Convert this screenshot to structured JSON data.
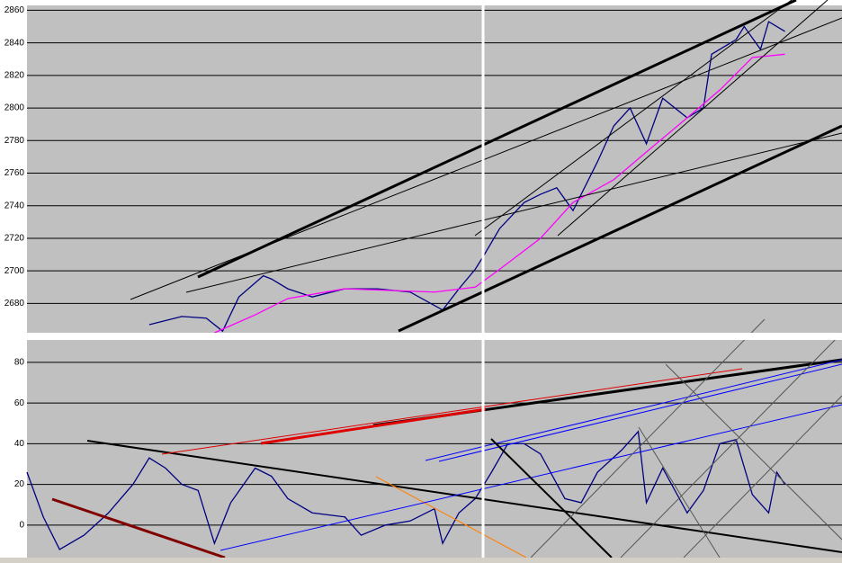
{
  "chart_data": [
    {
      "type": "line",
      "ylim": [
        2662,
        2863
      ],
      "yticks": [
        2680,
        2700,
        2720,
        2740,
        2760,
        2780,
        2800,
        2820,
        2840,
        2860
      ],
      "xlim": [
        0,
        100
      ],
      "grid": true,
      "series": [
        {
          "color": "#000080",
          "x": [
            15,
            19,
            22,
            24,
            26,
            29,
            30,
            32,
            35,
            39,
            43,
            47,
            51,
            53,
            55,
            56,
            58,
            61,
            63,
            65,
            67,
            70,
            72,
            74,
            76,
            78,
            81,
            83,
            84,
            87,
            88,
            90,
            91,
            93
          ],
          "values": [
            2667,
            2672,
            2671,
            2663,
            2684,
            2697,
            2695,
            2689,
            2684,
            2689,
            2689,
            2687,
            2676,
            2689,
            2701,
            2709,
            2726,
            2742,
            2747,
            2751,
            2737,
            2767,
            2789,
            2800,
            2778,
            2806,
            2794,
            2800,
            2833,
            2842,
            2850,
            2836,
            2853,
            2847
          ]
        },
        {
          "color": "#ff00ff",
          "x": [
            23,
            28,
            32,
            39,
            50,
            55,
            58,
            63,
            67,
            72,
            76,
            81,
            85,
            89,
            93
          ],
          "values": [
            2662,
            2673,
            2683,
            2689,
            2687,
            2690,
            2701,
            2720,
            2742,
            2756,
            2773,
            2794,
            2811,
            2831,
            2833
          ]
        }
      ]
    },
    {
      "type": "line",
      "ylim": [
        -16,
        91
      ],
      "yticks": [
        0,
        20,
        40,
        60,
        80
      ],
      "xlim": [
        0,
        100
      ],
      "grid": true,
      "series": [
        {
          "color": "#000080",
          "x": [
            0,
            2,
            4,
            7,
            10,
            13,
            15,
            17,
            19,
            21,
            23,
            25,
            28,
            30,
            32,
            35,
            39,
            41,
            44,
            47,
            50,
            51,
            53,
            55,
            57,
            59,
            61,
            63,
            66,
            68,
            70,
            73,
            75,
            76,
            78,
            81,
            83,
            85,
            87,
            89,
            91,
            92,
            93
          ],
          "values": [
            26,
            4,
            -12,
            -5,
            6,
            20,
            33,
            28,
            20,
            17,
            -9,
            11,
            28,
            24,
            13,
            6,
            4,
            -5,
            0,
            2,
            8,
            -9,
            6,
            13,
            26,
            40,
            40,
            35,
            13,
            11,
            26,
            37,
            46,
            11,
            28,
            6,
            17,
            40,
            42,
            15,
            6,
            26,
            20
          ]
        }
      ]
    }
  ]
}
